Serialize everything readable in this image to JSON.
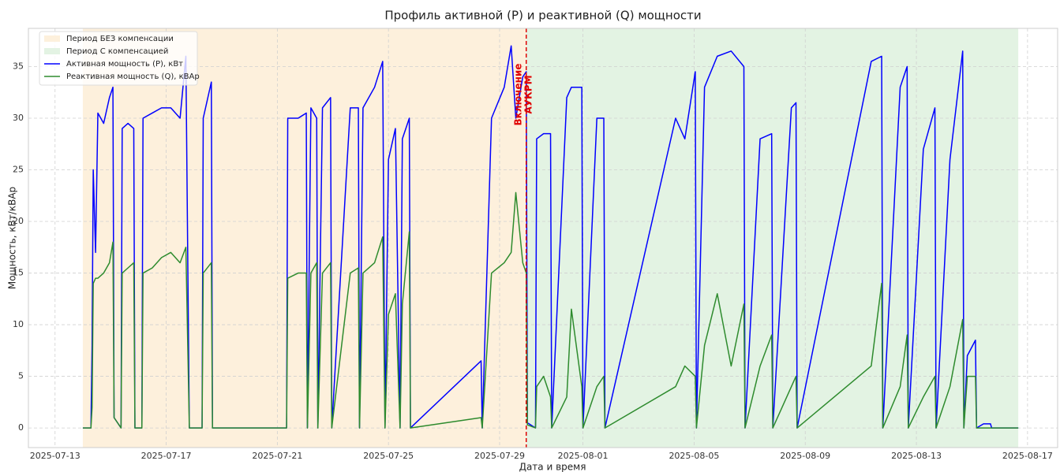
{
  "chart_data": {
    "type": "line",
    "title": "Профиль активной (P) и реактивной (Q) мощности",
    "x_label": "Дата и время",
    "y_label": "Мощность, кВт/кВАр",
    "xlim": [
      "2025-07-12T01:00",
      "2025-08-18T02:00"
    ],
    "ylim": [
      -1.9,
      38.7
    ],
    "xticks": [
      "2025-07-13",
      "2025-07-17",
      "2025-07-21",
      "2025-07-25",
      "2025-07-29",
      "2025-08-01",
      "2025-08-05",
      "2025-08-09",
      "2025-08-13",
      "2025-08-17"
    ],
    "yticks": [
      0,
      5,
      10,
      15,
      20,
      25,
      30,
      35
    ],
    "grid": true,
    "legend": "upper left",
    "spans": [
      {
        "name": "Период БЕЗ компенсации",
        "start": "2025-07-14T00:00",
        "end": "2025-07-29T23:00",
        "color": "#fdf0dc"
      },
      {
        "name": "Период С компенсацией",
        "start": "2025-07-29T23:00",
        "end": "2025-08-16T16:00",
        "color": "#e3f3e3"
      }
    ],
    "vline": {
      "x": "2025-07-29T23:00",
      "label": "Включение АУКРМ",
      "color": "#e00000"
    },
    "x": [
      "2025-07-14T00:00",
      "2025-07-14T07:00",
      "2025-07-14T08:00",
      "2025-07-14T09:00",
      "2025-07-14T11:00",
      "2025-07-14T13:00",
      "2025-07-14T18:00",
      "2025-07-14T23:00",
      "2025-07-15T02:00",
      "2025-07-15T03:00",
      "2025-07-15T09:00",
      "2025-07-15T10:00",
      "2025-07-15T15:00",
      "2025-07-15T20:00",
      "2025-07-15T21:00",
      "2025-07-16T03:00",
      "2025-07-16T04:00",
      "2025-07-16T12:00",
      "2025-07-16T20:00",
      "2025-07-17T04:00",
      "2025-07-17T12:00",
      "2025-07-17T17:00",
      "2025-07-17T20:00",
      "2025-07-18T07:00",
      "2025-07-18T08:00",
      "2025-07-18T15:00",
      "2025-07-18T16:00",
      "2025-07-21T08:00",
      "2025-07-21T09:00",
      "2025-07-21T18:00",
      "2025-07-22T01:00",
      "2025-07-22T02:00",
      "2025-07-22T05:00",
      "2025-07-22T10:00",
      "2025-07-22T11:00",
      "2025-07-22T15:00",
      "2025-07-22T22:00",
      "2025-07-22T23:00",
      "2025-07-23T15:00",
      "2025-07-23T22:00",
      "2025-07-23T23:00",
      "2025-07-24T02:00",
      "2025-07-24T12:00",
      "2025-07-24T19:00",
      "2025-07-24T21:00",
      "2025-07-25T00:00",
      "2025-07-25T06:00",
      "2025-07-25T10:00",
      "2025-07-25T12:00",
      "2025-07-25T18:00",
      "2025-07-25T19:00",
      "2025-07-28T08:00",
      "2025-07-28T09:00",
      "2025-07-28T17:00",
      "2025-07-29T04:00",
      "2025-07-29T10:00",
      "2025-07-29T14:00",
      "2025-07-29T20:00",
      "2025-07-29T23:00",
      "2025-07-30T00:00",
      "2025-07-30T07:00",
      "2025-07-30T08:00",
      "2025-07-30T14:00",
      "2025-07-30T20:00",
      "2025-07-30T21:00",
      "2025-07-31T10:00",
      "2025-07-31T14:00",
      "2025-07-31T23:00",
      "2025-08-01T00:00",
      "2025-08-01T12:00",
      "2025-08-01T18:00",
      "2025-08-01T19:00",
      "2025-08-04T08:00",
      "2025-08-04T16:00",
      "2025-08-05T01:00",
      "2025-08-05T02:00",
      "2025-08-05T09:00",
      "2025-08-05T20:00",
      "2025-08-06T08:00",
      "2025-08-06T19:00",
      "2025-08-06T20:00",
      "2025-08-07T09:00",
      "2025-08-07T19:00",
      "2025-08-07T20:00",
      "2025-08-08T12:00",
      "2025-08-08T16:00",
      "2025-08-08T17:00",
      "2025-08-11T09:00",
      "2025-08-11T18:00",
      "2025-08-11T19:00",
      "2025-08-12T10:00",
      "2025-08-12T16:00",
      "2025-08-12T17:00",
      "2025-08-13T06:00",
      "2025-08-13T16:00",
      "2025-08-13T17:00",
      "2025-08-14T05:00",
      "2025-08-14T16:00",
      "2025-08-14T17:00",
      "2025-08-14T20:00",
      "2025-08-15T03:00",
      "2025-08-15T04:00",
      "2025-08-15T10:00",
      "2025-08-15T16:00",
      "2025-08-15T17:00",
      "2025-08-16T16:00"
    ],
    "series": [
      {
        "name": "Активная мощность (P), кВт",
        "color": "#0000ff",
        "values": [
          0,
          0,
          8,
          25,
          17,
          30.5,
          29.5,
          32,
          33,
          1,
          0,
          29,
          29.5,
          29,
          0,
          0,
          30,
          30.5,
          31,
          31,
          30,
          36,
          0,
          0,
          30,
          33.5,
          0,
          0,
          30,
          30,
          30.5,
          0,
          31,
          30,
          0,
          31,
          32,
          0,
          31,
          31,
          0,
          31,
          33,
          35.5,
          0,
          26,
          29,
          0,
          28,
          30,
          0,
          6.5,
          0,
          30,
          33,
          37,
          30,
          34,
          34.5,
          0.5,
          0,
          28,
          28.5,
          28.5,
          0,
          32,
          33,
          33,
          0,
          30,
          30,
          0,
          30,
          28,
          34.5,
          0,
          33,
          36,
          36.5,
          35,
          0,
          28,
          28.5,
          0,
          31,
          31.5,
          0,
          35.5,
          36,
          0,
          33,
          35,
          0,
          27,
          31,
          0,
          26,
          36.5,
          0,
          7,
          8.5,
          0,
          0.4,
          0.4,
          0,
          0
        ]
      },
      {
        "name": "Реактивная мощность (Q), кВАр",
        "color": "#2e8b2e",
        "values": [
          0,
          0,
          2,
          14,
          14.5,
          14.5,
          15,
          16,
          18,
          1,
          0,
          15,
          15.5,
          16,
          0,
          0,
          15,
          15.5,
          16.5,
          17,
          16,
          17.5,
          0,
          0,
          15,
          16,
          0,
          0,
          14.5,
          15,
          15,
          0,
          15,
          16,
          0,
          15,
          16,
          0,
          15,
          15.5,
          0,
          15,
          16,
          18.5,
          0,
          11,
          13,
          0,
          12,
          19,
          0,
          1,
          0,
          15,
          16,
          17,
          22.8,
          16,
          15,
          0.3,
          0,
          4,
          5,
          3,
          0,
          3,
          11.5,
          4,
          0,
          4,
          5,
          0,
          4,
          6,
          5,
          0,
          8,
          13,
          6,
          12,
          0,
          6,
          9,
          0,
          4,
          5,
          0,
          6,
          14,
          0,
          4,
          9,
          0,
          3,
          5,
          0,
          4,
          10.5,
          0,
          5,
          5,
          0,
          0,
          0,
          0,
          0
        ]
      }
    ]
  }
}
